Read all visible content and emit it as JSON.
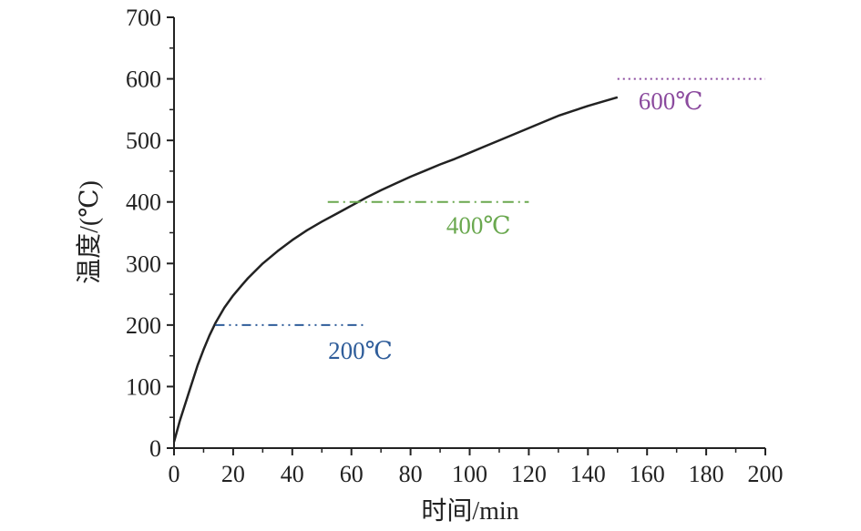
{
  "chart_data": {
    "type": "line",
    "title": "",
    "xlabel": "时间/min",
    "ylabel": "温度/(℃)",
    "xlim": [
      0,
      200
    ],
    "ylim": [
      0,
      700
    ],
    "x_ticks": [
      "0",
      "20",
      "40",
      "60",
      "80",
      "100",
      "120",
      "140",
      "160",
      "180",
      "200"
    ],
    "y_ticks": [
      "0",
      "100",
      "200",
      "300",
      "400",
      "500",
      "600",
      "700"
    ],
    "grid": false,
    "series": [
      {
        "color": "#222222",
        "style": "solid",
        "x": [
          0,
          2,
          5,
          8,
          10,
          12,
          14,
          17,
          20,
          23,
          25,
          30,
          35,
          40,
          45,
          50,
          55,
          60,
          65,
          70,
          75,
          80,
          85,
          90,
          95,
          100,
          105,
          110,
          115,
          120,
          125,
          130,
          135,
          140,
          145,
          150
        ],
        "y": [
          10,
          45,
          90,
          135,
          160,
          183,
          203,
          228,
          248,
          265,
          276,
          300,
          320,
          338,
          354,
          368,
          381,
          394,
          407,
          419,
          430,
          441,
          451,
          461,
          470,
          480,
          490,
          500,
          510,
          520,
          530,
          540,
          548,
          556,
          563,
          570
        ]
      }
    ],
    "reference_lines": [
      {
        "label": "200℃",
        "y": 200,
        "x_start": 14,
        "x_end": 65,
        "color": "#2f5d9a",
        "style": "dash-dot-dot",
        "label_x": 63,
        "label_y": 160
      },
      {
        "label": "400℃",
        "y": 400,
        "x_start": 52,
        "x_end": 120,
        "color": "#6aa84f",
        "style": "dash-dot",
        "label_x": 103,
        "label_y": 363
      },
      {
        "label": "600℃",
        "y": 600,
        "x_start": 150,
        "x_end": 200,
        "color": "#8b4a9e",
        "style": "dotted",
        "label_x": 168,
        "label_y": 565
      }
    ]
  }
}
